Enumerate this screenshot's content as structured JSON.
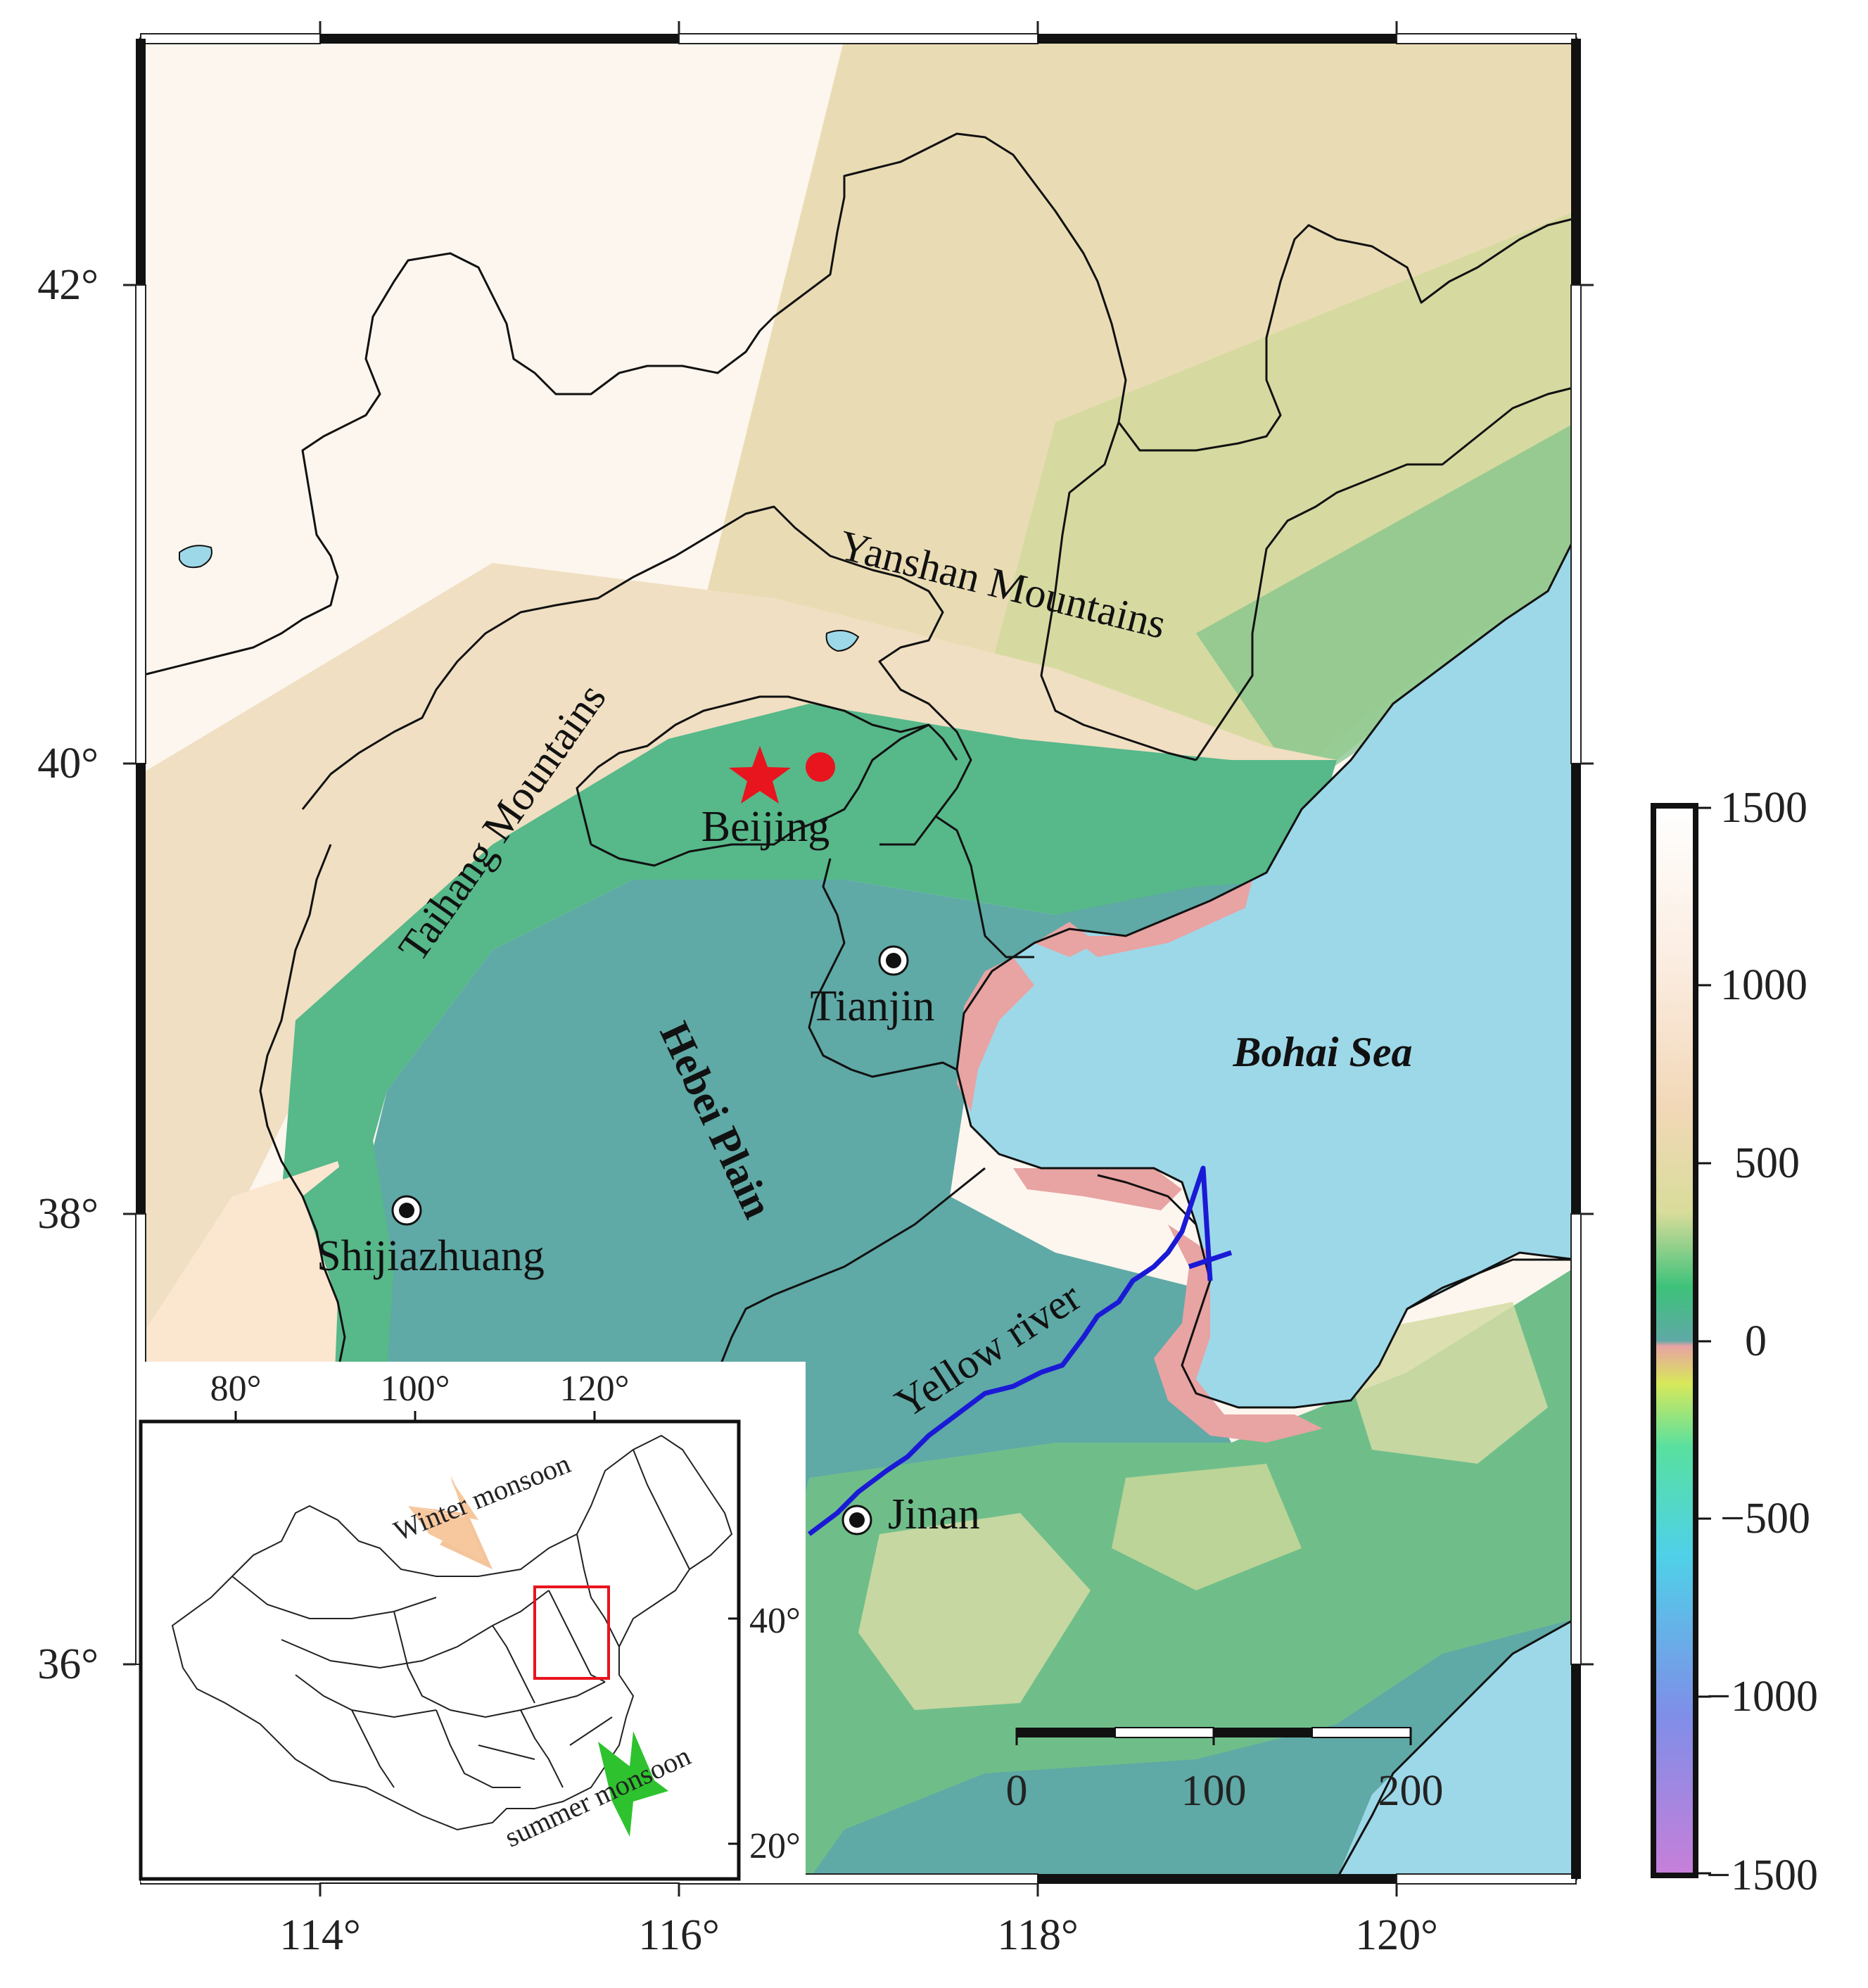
{
  "map": {
    "lon_ticks": [
      "114°",
      "116°",
      "118°",
      "120°"
    ],
    "lat_ticks": [
      "42°",
      "40°",
      "38°",
      "36°"
    ],
    "places": {
      "beijing": "Beijing",
      "tianjin": "Tianjin",
      "shijiazhuang": "Shijiazhuang",
      "jinan": "Jinan"
    },
    "features": {
      "yanshan": "Yanshan Mountains",
      "taihang": "Taihang Mountains",
      "hebei_plain": "Hebei Plain",
      "bohai_sea": "Bohai Sea",
      "yellow_river": "Yellow   river"
    },
    "colors": {
      "sea": "#9dd8e8",
      "lowland": "#5fa9a6",
      "coastal_below_sea": "#e8a3a3",
      "river": "#1a1ad6",
      "marker": "#e8141e"
    }
  },
  "colorbar": {
    "ticks": [
      "1500",
      "1000",
      "500",
      "0",
      "−500",
      "−1000",
      "−1500"
    ],
    "range": [
      -1500,
      1500
    ]
  },
  "scale_bar": {
    "labels": [
      "0",
      "100",
      "200"
    ]
  },
  "inset": {
    "lon_ticks": [
      "80°",
      "100°",
      "120°"
    ],
    "lat_ticks": [
      "40°",
      "20°"
    ],
    "winter_monsoon": "Winter monsoon",
    "summer_monsoon": "summer monsoon"
  }
}
